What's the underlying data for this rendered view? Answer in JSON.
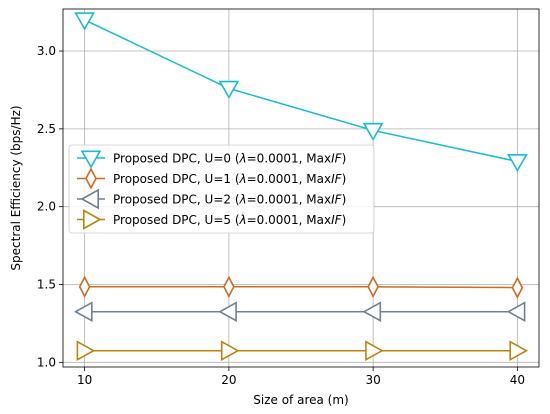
{
  "chart_data": {
    "type": "line",
    "xlabel": "Size of area (m)",
    "ylabel": "Spectral Efficiency (bps/Hz)",
    "x": [
      10,
      20,
      30,
      40
    ],
    "xticks": [
      10,
      20,
      30,
      40
    ],
    "yticks": [
      1.0,
      1.5,
      2.0,
      2.5,
      3.0
    ],
    "xlim": [
      8.5,
      41.5
    ],
    "ylim": [
      0.97,
      3.27
    ],
    "grid": true,
    "legend_position": "center-left",
    "series": [
      {
        "name": "Proposed DPC, U=0 (λ=0.0001, MaxIF)",
        "label_prefix": "Proposed DPC, U=0 (",
        "label_suffix": ")",
        "color": "#17BECF",
        "marker": "triangle-down",
        "values": [
          3.2,
          2.76,
          2.49,
          2.29
        ]
      },
      {
        "name": "Proposed DPC, U=1 (λ=0.0001, MaxIF)",
        "label_prefix": "Proposed DPC, U=1 (",
        "label_suffix": ")",
        "color": "#D2691E",
        "marker": "thin-diamond",
        "values": [
          1.485,
          1.485,
          1.485,
          1.48
        ]
      },
      {
        "name": "Proposed DPC, U=2 (λ=0.0001, MaxIF)",
        "label_prefix": "Proposed DPC, U=2 (",
        "label_suffix": ")",
        "color": "#708090",
        "marker": "triangle-left",
        "values": [
          1.325,
          1.325,
          1.325,
          1.325
        ]
      },
      {
        "name": "Proposed DPC, U=5 (λ=0.0001, MaxIF)",
        "label_prefix": "Proposed DPC, U=5 (",
        "label_suffix": ")",
        "color": "#B8860B",
        "marker": "triangle-right",
        "values": [
          1.075,
          1.075,
          1.075,
          1.075
        ]
      }
    ],
    "legend_math": {
      "lambda": "λ",
      "eq": "=0.0001, Max",
      "if": "IF"
    }
  }
}
